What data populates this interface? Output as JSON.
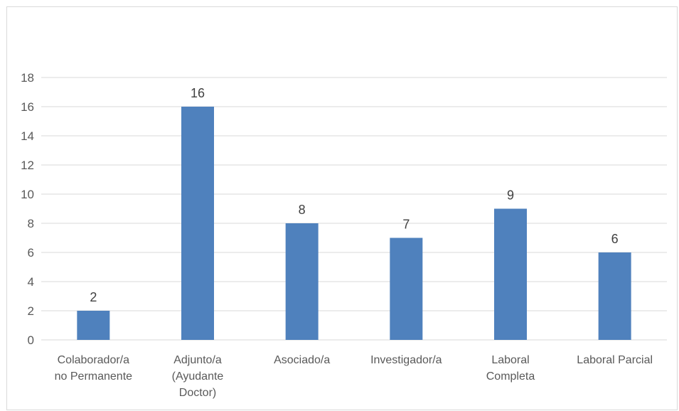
{
  "chart_data": {
    "type": "bar",
    "categories": [
      [
        "Colaborador/a",
        "no Permanente"
      ],
      [
        "Adjunto/a",
        "(Ayudante",
        "Doctor)"
      ],
      [
        "Asociado/a"
      ],
      [
        "Investigador/a"
      ],
      [
        "Laboral",
        "Completa"
      ],
      [
        "Laboral Parcial"
      ]
    ],
    "values": [
      2,
      16,
      8,
      7,
      9,
      6
    ],
    "data_labels": [
      "2",
      "16",
      "8",
      "7",
      "9",
      "6"
    ],
    "y_ticks": [
      "0",
      "2",
      "4",
      "6",
      "8",
      "10",
      "12",
      "14",
      "16",
      "18"
    ],
    "ylim": [
      0,
      18
    ],
    "grid": true,
    "legend": "none",
    "title": "",
    "xlabel": "",
    "ylabel": "",
    "colors": {
      "bar": "#4f81bd",
      "grid": "#d9d9d9",
      "axis": "#d9d9d9",
      "tick_text": "#595959",
      "data_label_text": "#404040"
    }
  }
}
